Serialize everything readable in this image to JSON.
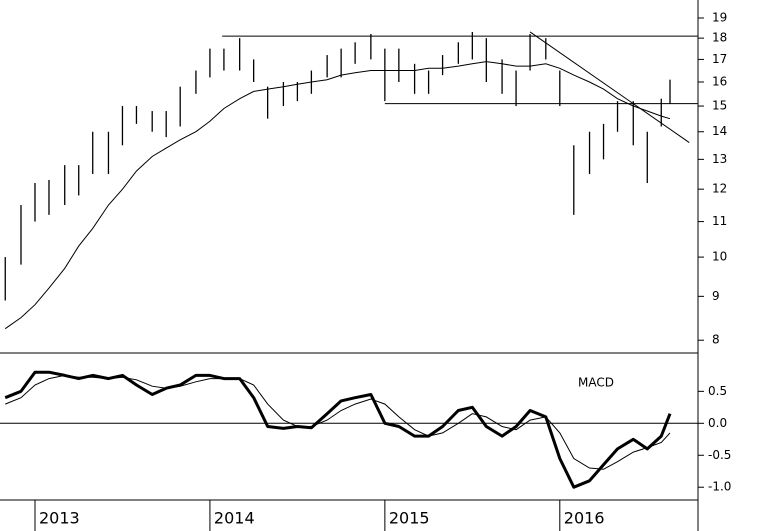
{
  "chart_data": [
    {
      "type": "ohlc",
      "log_scale": true,
      "color": "#000000",
      "x": [
        2012.83,
        2012.92,
        2013.0,
        2013.08,
        2013.17,
        2013.25,
        2013.33,
        2013.42,
        2013.5,
        2013.58,
        2013.67,
        2013.75,
        2013.83,
        2013.92,
        2014.0,
        2014.08,
        2014.17,
        2014.25,
        2014.33,
        2014.42,
        2014.5,
        2014.58,
        2014.67,
        2014.75,
        2014.83,
        2014.92,
        2015.0,
        2015.08,
        2015.17,
        2015.25,
        2015.33,
        2015.42,
        2015.5,
        2015.58,
        2015.67,
        2015.75,
        2015.83,
        2015.92,
        2016.0,
        2016.08,
        2016.17,
        2016.25,
        2016.33,
        2016.42,
        2016.5,
        2016.58,
        2016.63
      ],
      "high": [
        10,
        11.5,
        12.2,
        12.3,
        12.8,
        12.8,
        14,
        14,
        15,
        15,
        14.8,
        14.8,
        15.8,
        16.5,
        17.5,
        17.5,
        18,
        17,
        15.8,
        16,
        16,
        16.5,
        17.2,
        17.5,
        17.8,
        18.2,
        17.5,
        17.5,
        16.8,
        16.5,
        17.2,
        17.8,
        18.3,
        18,
        17,
        16.5,
        18.2,
        18,
        16.5,
        13.5,
        14,
        14.3,
        15.2,
        15.2,
        14,
        15.3,
        16.1
      ],
      "low": [
        8.9,
        9.8,
        11,
        11.2,
        11.5,
        11.8,
        12.5,
        12.5,
        13.5,
        14.3,
        14,
        13.8,
        14.2,
        15.5,
        16.2,
        16.5,
        16.5,
        16,
        14.5,
        15,
        15.2,
        15.5,
        16.2,
        16.2,
        16.8,
        17,
        15.2,
        16,
        15.5,
        15.5,
        16.3,
        16.8,
        17,
        16,
        15.5,
        15,
        16.5,
        17,
        15,
        11.2,
        12.5,
        13,
        14,
        13.5,
        12.2,
        14.2,
        15.1
      ],
      "ma": [
        8.25,
        8.5,
        8.8,
        9.2,
        9.7,
        10.3,
        10.8,
        11.5,
        12.0,
        12.6,
        13.1,
        13.4,
        13.7,
        14.0,
        14.4,
        14.9,
        15.3,
        15.6,
        15.7,
        15.8,
        15.9,
        16.0,
        16.1,
        16.3,
        16.4,
        16.5,
        16.5,
        16.5,
        16.5,
        16.6,
        16.6,
        16.7,
        16.8,
        16.9,
        16.8,
        16.7,
        16.7,
        16.8,
        16.6,
        16.3,
        16.0,
        15.7,
        15.3,
        15.0,
        14.8,
        14.6,
        14.5
      ],
      "reference_lines": [
        {
          "x": [
            2014.07,
            2016.79
          ],
          "y": [
            18.1,
            18.1
          ]
        },
        {
          "x": [
            2015.0,
            2016.79
          ],
          "y": [
            15.1,
            15.1
          ]
        },
        {
          "x": [
            2015.83,
            2016.74
          ],
          "y": [
            18.3,
            13.6
          ]
        }
      ],
      "xlim": [
        2012.8,
        2016.79
      ],
      "ylim": [
        7.73,
        19.94
      ],
      "yticks": [
        8,
        9,
        10,
        11,
        12,
        13,
        14,
        15,
        16,
        17,
        18,
        19
      ]
    },
    {
      "type": "line",
      "title": "MACD",
      "color": "#000000",
      "x": [
        2012.83,
        2012.92,
        2013.0,
        2013.08,
        2013.17,
        2013.25,
        2013.33,
        2013.42,
        2013.5,
        2013.58,
        2013.67,
        2013.75,
        2013.83,
        2013.92,
        2014.0,
        2014.08,
        2014.17,
        2014.25,
        2014.33,
        2014.42,
        2014.5,
        2014.58,
        2014.67,
        2014.75,
        2014.83,
        2014.92,
        2015.0,
        2015.08,
        2015.17,
        2015.25,
        2015.33,
        2015.42,
        2015.5,
        2015.58,
        2015.67,
        2015.75,
        2015.83,
        2015.92,
        2016.0,
        2016.08,
        2016.17,
        2016.25,
        2016.33,
        2016.42,
        2016.5,
        2016.58,
        2016.63
      ],
      "macd": [
        0.4,
        0.5,
        0.8,
        0.8,
        0.75,
        0.7,
        0.75,
        0.7,
        0.75,
        0.6,
        0.45,
        0.55,
        0.6,
        0.75,
        0.75,
        0.7,
        0.7,
        0.4,
        -0.05,
        -0.08,
        -0.05,
        -0.07,
        0.15,
        0.35,
        0.4,
        0.45,
        0.0,
        -0.05,
        -0.2,
        -0.2,
        -0.05,
        0.2,
        0.25,
        -0.05,
        -0.2,
        -0.05,
        0.2,
        0.1,
        -0.55,
        -1.0,
        -0.9,
        -0.65,
        -0.4,
        -0.25,
        -0.4,
        -0.2,
        0.15
      ],
      "signal": [
        0.3,
        0.4,
        0.6,
        0.7,
        0.75,
        0.72,
        0.72,
        0.7,
        0.72,
        0.68,
        0.58,
        0.55,
        0.58,
        0.65,
        0.7,
        0.7,
        0.7,
        0.6,
        0.3,
        0.05,
        -0.05,
        -0.05,
        0.05,
        0.2,
        0.3,
        0.38,
        0.3,
        0.1,
        -0.1,
        -0.2,
        -0.15,
        0.0,
        0.15,
        0.1,
        -0.05,
        -0.1,
        0.05,
        0.1,
        -0.15,
        -0.55,
        -0.7,
        -0.72,
        -0.6,
        -0.45,
        -0.38,
        -0.3,
        -0.15
      ],
      "zero_line": 0,
      "xlim": [
        2012.8,
        2016.79
      ],
      "xticks": [
        2013,
        2014,
        2015,
        2016
      ],
      "ylim": [
        -1.2,
        1.1
      ],
      "yticks": [
        {
          "value": -1,
          "label": "-1.0"
        },
        -0.5,
        {
          "value": 0,
          "label": "0.0"
        },
        0.5
      ]
    }
  ]
}
